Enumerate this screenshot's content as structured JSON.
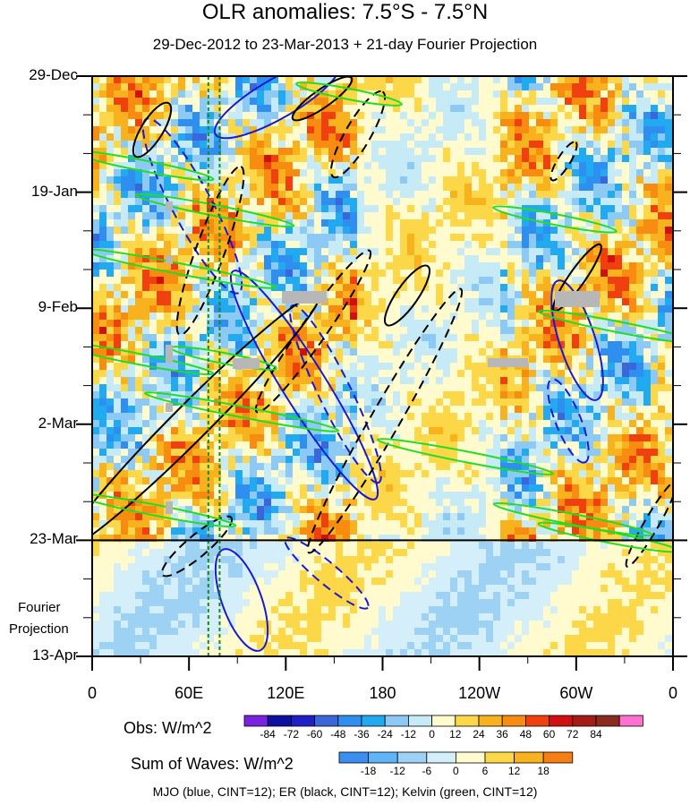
{
  "chart_data": {
    "type": "heatmap",
    "title": "OLR anomalies: 7.5°S - 7.5°N",
    "subtitle": "29-Dec-2012 to 23-Mar-2013 + 21-day Fourier Projection",
    "x_tick_labels": [
      "0",
      "60E",
      "120E",
      "180",
      "120W",
      "60W",
      "0"
    ],
    "x_ticks_lon": [
      0,
      60,
      120,
      180,
      240,
      300,
      360
    ],
    "y_tick_labels": [
      "29-Dec",
      "19-Jan",
      "9-Feb",
      "2-Mar",
      "23-Mar",
      "13-Apr"
    ],
    "y_ticks_day": [
      0,
      21,
      42,
      63,
      84,
      105
    ],
    "projection_start_day": 84,
    "projection_label_1": "Fourier",
    "projection_label_2": "Projection",
    "obs_colorbar": {
      "title": "Obs: W/m^2",
      "ticks": [
        "-84",
        "-72",
        "-60",
        "-48",
        "-36",
        "-24",
        "-12",
        "0",
        "12",
        "24",
        "36",
        "48",
        "60",
        "72",
        "84"
      ],
      "colors": [
        "#7a22e0",
        "#1010a0",
        "#1f1fc8",
        "#3b66d9",
        "#2f8ff0",
        "#22aaf0",
        "#8ccaf5",
        "#c6ebf7",
        "#fffbcf",
        "#fcd848",
        "#f8b21e",
        "#f88c10",
        "#f04010",
        "#d01010",
        "#a41c14",
        "#8a2a20",
        "#ff70d0"
      ]
    },
    "waves_colorbar": {
      "title": "Sum of Waves: W/m^2",
      "ticks": [
        "-18",
        "-12",
        "-6",
        "0",
        "6",
        "12",
        "18"
      ],
      "colors": [
        "#3c8ff0",
        "#5fb4f5",
        "#9ed2f5",
        "#d4effa",
        "#fffbcf",
        "#fcd848",
        "#f8b21e",
        "#f57f12"
      ]
    },
    "contours_note": "MJO (blue, CINT=12); ER (black, CINT=12); Kelvin (green, CINT=12)",
    "series": [
      {
        "name": "MJO",
        "color": "#1a1ad0"
      },
      {
        "name": "ER",
        "color": "#000000"
      },
      {
        "name": "Kelvin",
        "color": "#22dd22"
      }
    ],
    "reference_meridians_lon": [
      72,
      79
    ]
  }
}
